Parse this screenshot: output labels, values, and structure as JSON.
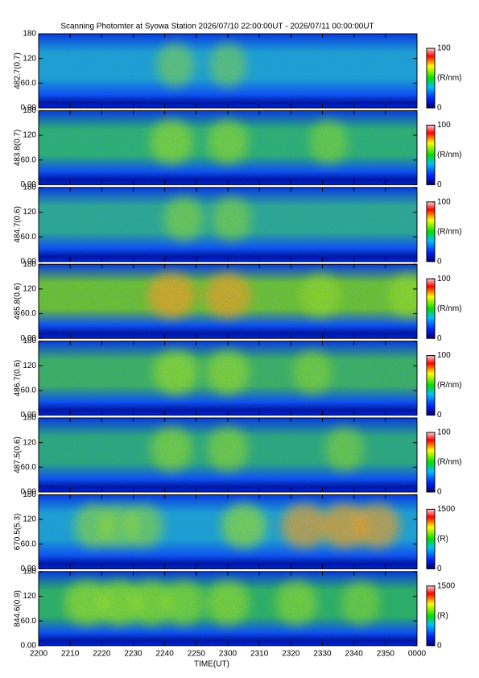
{
  "chart_data": {
    "type": "keogram",
    "title": "Scanning Photomter at Syowa Station 2026/07/10 22:00:00UT - 2026/07/11 00:00:00UT",
    "x_labels": [
      "2200",
      "2210",
      "2220",
      "2230",
      "2240",
      "2250",
      "2300",
      "2310",
      "2320",
      "2330",
      "2340",
      "2350",
      "0000"
    ],
    "xlabel": "TIME(UT)",
    "panels": [
      {
        "ylabel": "482.7(0.7)",
        "ylim": [
          0,
          180
        ],
        "yticks": [
          {
            "value": 0,
            "label": "0.00"
          },
          {
            "value": 60,
            "label": "60.0"
          },
          120,
          180
        ],
        "clim": [
          0,
          100
        ],
        "cticks": [
          0,
          100
        ],
        "clabel": "(R/nm)"
      },
      {
        "ylabel": "483.8(0.7)",
        "ylim": [
          0,
          180
        ],
        "yticks": [
          {
            "value": 0,
            "label": "0.00"
          },
          {
            "value": 60,
            "label": "60.0"
          },
          120,
          180
        ],
        "clim": [
          0,
          100
        ],
        "cticks": [
          0,
          100
        ],
        "clabel": "(R/nm)"
      },
      {
        "ylabel": "484.7(0.6)",
        "ylim": [
          0,
          180
        ],
        "yticks": [
          {
            "value": 0,
            "label": "0.00"
          },
          {
            "value": 60,
            "label": "60.0"
          },
          120,
          180
        ],
        "clim": [
          0,
          100
        ],
        "cticks": [
          0,
          100
        ],
        "clabel": "(R/nm)"
      },
      {
        "ylabel": "485.8(0.6)",
        "ylim": [
          0,
          180
        ],
        "yticks": [
          {
            "value": 0,
            "label": "0.00"
          },
          {
            "value": 60,
            "label": "60.0"
          },
          120,
          180
        ],
        "clim": [
          0,
          100
        ],
        "cticks": [
          0,
          100
        ],
        "clabel": "(R/nm)"
      },
      {
        "ylabel": "486.7(0.6)",
        "ylim": [
          0,
          180
        ],
        "yticks": [
          {
            "value": 0,
            "label": "0.00"
          },
          {
            "value": 60,
            "label": "60.0"
          },
          120,
          180
        ],
        "clim": [
          0,
          100
        ],
        "cticks": [
          0,
          100
        ],
        "clabel": "(R/nm)"
      },
      {
        "ylabel": "487.5(0.6)",
        "ylim": [
          0,
          180
        ],
        "yticks": [
          {
            "value": 0,
            "label": "0.00"
          },
          {
            "value": 60,
            "label": "60.0"
          },
          120,
          180
        ],
        "clim": [
          0,
          100
        ],
        "cticks": [
          0,
          100
        ],
        "clabel": "(R/nm)"
      },
      {
        "ylabel": "670.5(5.3)",
        "ylim": [
          0,
          180
        ],
        "yticks": [
          {
            "value": 0,
            "label": "0.00"
          },
          {
            "value": 60,
            "label": "60.0"
          },
          120,
          180
        ],
        "clim": [
          0,
          1500
        ],
        "cticks": [
          0,
          1500
        ],
        "clabel": "(R)"
      },
      {
        "ylabel": "844.6(0.9)",
        "ylim": [
          0,
          180
        ],
        "yticks": [
          {
            "value": 0,
            "label": "0.00"
          },
          {
            "value": 60,
            "label": "60.0"
          },
          120,
          180
        ],
        "clim": [
          0,
          1500
        ],
        "cticks": [
          0,
          1500
        ],
        "clabel": "(R)"
      }
    ]
  }
}
